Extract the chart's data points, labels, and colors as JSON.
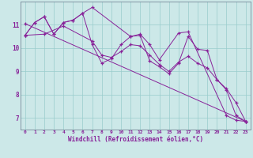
{
  "background_color": "#cce8e8",
  "line_color": "#882299",
  "grid_color": "#99cccc",
  "xlabel": "Windchill (Refroidissement éolien,°C)",
  "xlabel_color": "#882299",
  "tick_color": "#882299",
  "spine_color": "#778899",
  "ylim": [
    6.5,
    12.0
  ],
  "xlim": [
    -0.5,
    23.5
  ],
  "yticks": [
    7,
    8,
    9,
    10,
    11
  ],
  "xticks": [
    0,
    1,
    2,
    3,
    4,
    5,
    6,
    7,
    8,
    9,
    10,
    11,
    12,
    13,
    14,
    15,
    16,
    17,
    18,
    19,
    20,
    21,
    22,
    23
  ],
  "series1_x": [
    0,
    1,
    2,
    3,
    4,
    5,
    6,
    7,
    11,
    12,
    13,
    14,
    16,
    17,
    21,
    22,
    23
  ],
  "series1_y": [
    10.55,
    11.1,
    11.35,
    10.6,
    11.1,
    11.2,
    11.5,
    11.75,
    10.5,
    10.6,
    10.15,
    9.5,
    10.65,
    10.7,
    7.1,
    6.9,
    6.85
  ],
  "series2_x": [
    0,
    1,
    2,
    3,
    4,
    5,
    6,
    7,
    8,
    9,
    10,
    11,
    12,
    13,
    14,
    15,
    16,
    17,
    18,
    19,
    20,
    21,
    22,
    23
  ],
  "series2_y": [
    10.55,
    11.1,
    11.35,
    10.6,
    11.1,
    11.2,
    11.5,
    10.15,
    9.35,
    9.55,
    10.15,
    10.5,
    10.55,
    9.45,
    9.2,
    8.9,
    9.35,
    10.5,
    9.95,
    9.9,
    8.65,
    8.2,
    7.1,
    6.85
  ],
  "series3_x": [
    0,
    23
  ],
  "series3_y": [
    11.05,
    6.85
  ],
  "series4_x": [
    0,
    2,
    4,
    7,
    8,
    9,
    10,
    11,
    12,
    13,
    14,
    15,
    16,
    17,
    18,
    19,
    20,
    21,
    22,
    23
  ],
  "series4_y": [
    10.55,
    10.6,
    10.95,
    10.3,
    9.7,
    9.6,
    9.85,
    10.15,
    10.1,
    9.7,
    9.3,
    9.0,
    9.4,
    9.65,
    9.35,
    9.15,
    8.65,
    8.25,
    7.65,
    6.85
  ]
}
